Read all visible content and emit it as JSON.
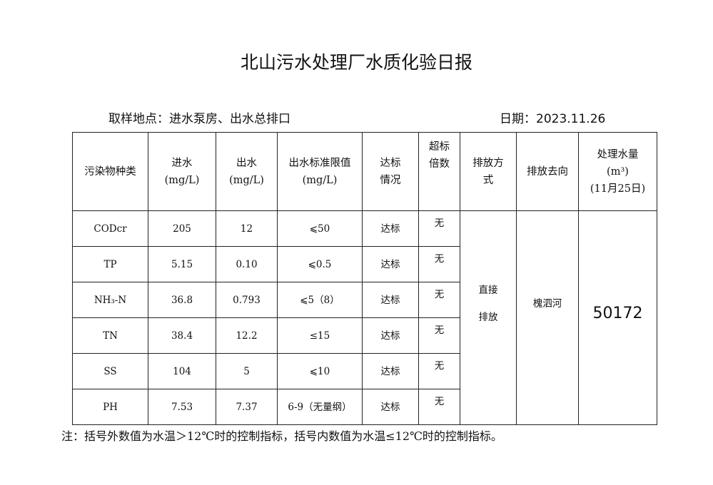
{
  "title": "北山污水处理厂水质化验日报",
  "location": "取样地点：进水泵房、出水总排口",
  "date": "日期：2023.11.26",
  "headers": {
    "pollutant": "污染物种类",
    "influent": [
      "进水",
      "(mg/L)"
    ],
    "effluent": [
      "出水",
      "(mg/L)"
    ],
    "limit": [
      "出水标准限值",
      "(mg/L)"
    ],
    "compliance": [
      "达标",
      "情况"
    ],
    "exceed": [
      "超标",
      "倍数"
    ],
    "discharge_mode": [
      "排放方",
      "式"
    ],
    "destination": "排放去向",
    "volume": [
      "处理水量",
      "(m³)",
      "(11月25日)"
    ]
  },
  "rows": [
    {
      "name": "CODcr",
      "in": "205",
      "out": "12",
      "limit": "⩽50",
      "status": "达标",
      "exceed": "无"
    },
    {
      "name": "TP",
      "in": "5.15",
      "out": "0.10",
      "limit": "⩽0.5",
      "status": "达标",
      "exceed": "无"
    },
    {
      "name": "NH₃-N",
      "in": "36.8",
      "out": "0.793",
      "limit": "⩽5（8）",
      "status": "达标",
      "exceed": "无"
    },
    {
      "name": "TN",
      "in": "38.4",
      "out": "12.2",
      "limit": "≤15",
      "status": "达标",
      "exceed": "无"
    },
    {
      "name": "SS",
      "in": "104",
      "out": "5",
      "limit": "⩽10",
      "status": "达标",
      "exceed": "无"
    },
    {
      "name": "PH",
      "in": "7.53",
      "out": "7.37",
      "limit": "6-9（无量纲）",
      "status": "达标",
      "exceed": "无"
    }
  ],
  "discharge_mode": [
    "直接",
    "排放"
  ],
  "destination": "槐泗河",
  "volume": "50172",
  "note": "注：括号外数值为水温＞12℃时的控制指标，括号内数值为水温≤12℃时的控制指标。"
}
